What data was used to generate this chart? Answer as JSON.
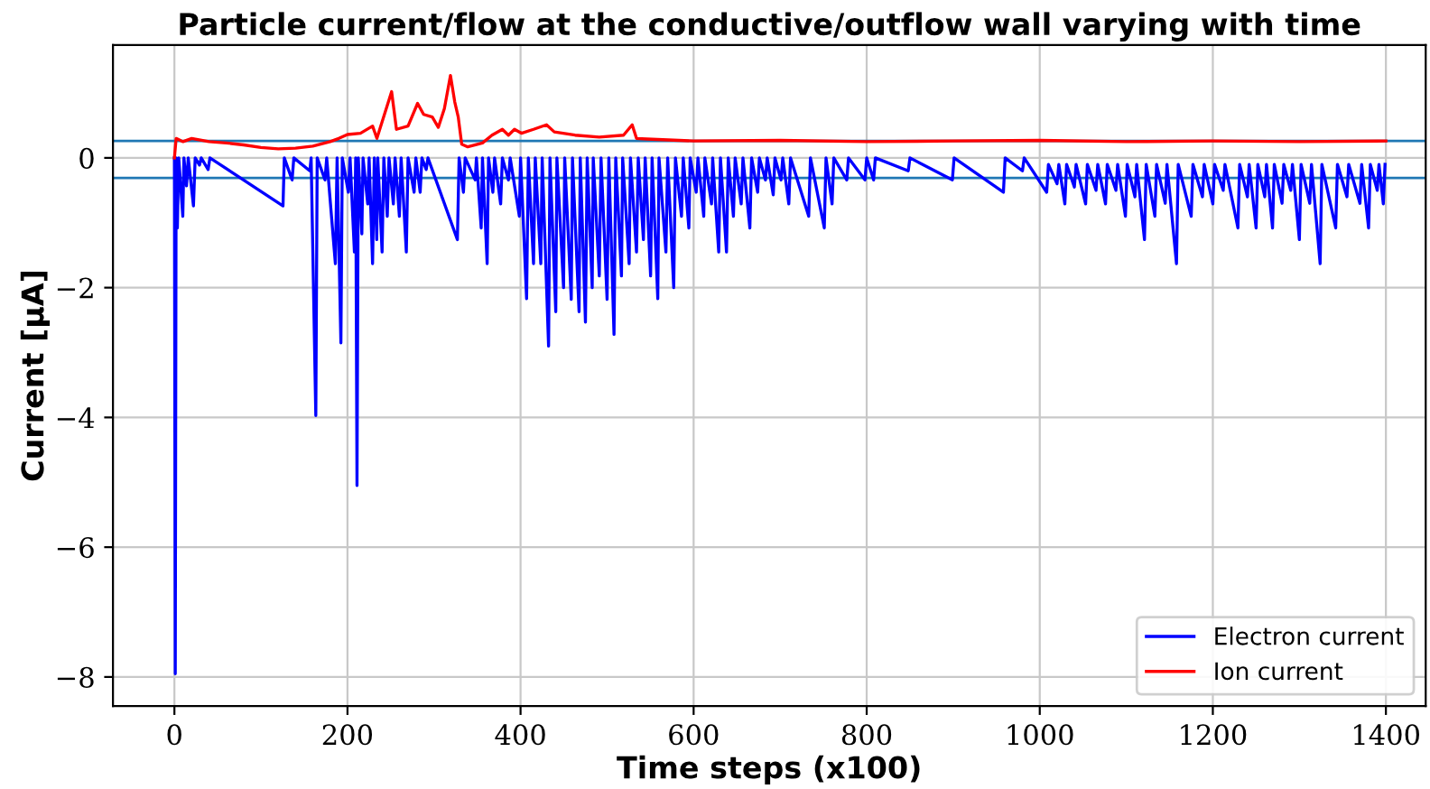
{
  "chart_data": {
    "type": "line",
    "title": "Particle current/flow at the conductive/outflow wall varying with time",
    "xlabel": "Time steps (x100)",
    "ylabel": "Current [μA]",
    "xlim": [
      -71,
      1446
    ],
    "ylim": [
      -8.45,
      1.74
    ],
    "xticks": [
      0,
      200,
      400,
      600,
      800,
      1000,
      1200,
      1400
    ],
    "yticks": [
      {
        "value": -8,
        "label": "−8"
      },
      {
        "value": -6,
        "label": "−6"
      },
      {
        "value": -4,
        "label": "−4"
      },
      {
        "value": -2,
        "label": "−2"
      },
      0
    ],
    "grid": true,
    "legend": "lower right",
    "ref_lines": [
      {
        "axis": "y",
        "value": 0.26,
        "color": "#1f77b4"
      },
      {
        "axis": "y",
        "value": -0.31,
        "color": "#1f77b4"
      }
    ],
    "series": [
      {
        "name": "Electron current",
        "color": "#0000ff",
        "x": [
          0,
          1,
          2,
          3.4,
          5,
          9.7,
          11,
          14,
          16,
          22,
          24,
          29,
          31,
          39,
          41,
          125.5,
          127,
          136,
          138,
          156.5,
          158,
          163.4,
          165,
          174,
          176,
          186,
          188,
          192.4,
          194,
          201,
          203,
          208,
          209.5,
          211,
          212.5,
          216.6,
          218,
          223.4,
          225,
          229,
          231,
          233.8,
          235,
          240,
          242,
          246,
          248,
          253,
          255,
          260,
          262,
          268,
          270,
          277,
          279,
          284,
          286,
          291,
          293,
          327,
          329,
          334,
          336,
          347.6,
          349,
          354.5,
          356,
          361.4,
          363,
          368,
          370,
          377,
          379,
          386,
          388,
          398.6,
          400,
          407,
          409,
          415,
          417,
          423.4,
          425,
          432.4,
          434,
          440.7,
          442,
          449.7,
          451,
          458.6,
          460,
          467.6,
          469,
          475,
          477,
          482.8,
          484,
          491,
          493,
          500,
          502,
          508,
          510,
          516.6,
          518,
          525.5,
          527,
          534,
          536,
          542,
          544,
          550.3,
          552,
          558.6,
          560,
          568,
          570,
          577,
          579,
          586,
          588,
          594.5,
          596,
          603,
          605,
          611.7,
          613,
          620.7,
          622,
          629,
          631,
          638,
          640,
          646,
          648,
          655,
          657,
          665,
          667,
          674,
          676,
          683,
          685,
          692,
          694,
          701,
          703,
          710,
          712,
          733,
          735,
          751,
          753,
          760,
          762,
          777,
          779,
          798,
          800,
          808,
          810,
          848,
          850,
          899,
          901,
          958,
          960,
          980,
          982,
          1008,
          1010,
          1020,
          1022,
          1029,
          1031,
          1040,
          1042,
          1053,
          1055,
          1065,
          1067,
          1076,
          1078,
          1088,
          1090,
          1099,
          1101,
          1110,
          1112,
          1121,
          1123,
          1133,
          1135,
          1145,
          1147,
          1158,
          1160,
          1175,
          1177,
          1188,
          1190,
          1200,
          1202,
          1212,
          1214,
          1229,
          1231,
          1240,
          1242,
          1250,
          1252,
          1260,
          1262,
          1269,
          1271,
          1280,
          1282,
          1290,
          1292,
          1300,
          1302,
          1312,
          1314,
          1324,
          1326,
          1342,
          1344,
          1355,
          1357,
          1370,
          1372,
          1380,
          1382,
          1390,
          1392,
          1397,
          1399
        ],
        "values": [
          0,
          -7.95,
          0,
          -1.08,
          0,
          -0.9,
          0,
          -0.43,
          0,
          -0.74,
          0,
          -0.11,
          0,
          -0.18,
          0,
          -0.74,
          0,
          -0.34,
          0,
          -0.2,
          0,
          -3.97,
          0,
          -0.34,
          0,
          -1.63,
          0,
          -2.85,
          0,
          -0.53,
          0,
          -1.45,
          0,
          -5.05,
          0,
          -1.17,
          0,
          -0.71,
          0,
          -1.63,
          0,
          -1.26,
          0,
          -1.45,
          0,
          -0.9,
          0,
          -0.71,
          0,
          -0.9,
          0,
          -1.45,
          0,
          -0.53,
          0,
          -0.53,
          0,
          -0.18,
          0,
          -1.26,
          0,
          -0.53,
          0,
          -0.34,
          0,
          -1.08,
          0,
          -1.63,
          0,
          -0.53,
          0,
          -0.71,
          0,
          -0.34,
          0,
          -0.9,
          0,
          -2.17,
          0,
          -1.63,
          0,
          -1.63,
          0,
          -2.9,
          0,
          -2.37,
          0,
          -2.0,
          0,
          -2.18,
          0,
          -2.37,
          0,
          -2.53,
          0,
          -2.0,
          0,
          -1.82,
          0,
          -2.18,
          0,
          -2.72,
          0,
          -1.82,
          0,
          -1.63,
          0,
          -1.45,
          0,
          -1.26,
          0,
          -1.82,
          0,
          -2.17,
          0,
          -1.45,
          0,
          -2.0,
          0,
          -0.9,
          0,
          -1.08,
          0,
          -0.53,
          0,
          -0.9,
          0,
          -0.71,
          0,
          -1.45,
          0,
          -1.45,
          0,
          -0.9,
          0,
          -0.71,
          0,
          -1.08,
          0,
          -0.53,
          0,
          -0.34,
          0,
          -0.57,
          0,
          -0.34,
          0,
          -0.71,
          0,
          -0.9,
          0,
          -1.08,
          0,
          -0.71,
          0,
          -0.34,
          0,
          -0.34,
          0,
          -0.34,
          0,
          -0.2,
          0,
          -0.34,
          0,
          -0.53,
          0,
          -0.2,
          0,
          -0.53,
          -0.1,
          -0.4,
          -0.1,
          -0.71,
          -0.1,
          -0.45,
          -0.1,
          -0.71,
          -0.1,
          -0.5,
          -0.1,
          -0.71,
          -0.1,
          -0.5,
          -0.1,
          -0.9,
          -0.1,
          -0.6,
          -0.1,
          -1.26,
          -0.1,
          -0.9,
          -0.1,
          -0.7,
          -0.1,
          -1.63,
          -0.1,
          -0.9,
          -0.1,
          -0.6,
          -0.1,
          -0.71,
          -0.1,
          -0.5,
          -0.1,
          -1.08,
          -0.1,
          -0.6,
          -0.1,
          -1.08,
          -0.1,
          -0.6,
          -0.1,
          -1.08,
          -0.1,
          -0.7,
          -0.1,
          -0.5,
          -0.1,
          -1.26,
          -0.1,
          -0.7,
          -0.1,
          -1.63,
          -0.1,
          -1.08,
          -0.1,
          -0.6,
          -0.1,
          -0.7,
          -0.1,
          -1.08,
          -0.1,
          -0.5,
          -0.1,
          -0.71,
          -0.1
        ]
      },
      {
        "name": "Ion current",
        "color": "#ff0000",
        "x": [
          0,
          2,
          10,
          20,
          40,
          60,
          80,
          100,
          120,
          140,
          160,
          180,
          190,
          200,
          215,
          229,
          234,
          251,
          256.6,
          270,
          281,
          288,
          298,
          305,
          312,
          319,
          324,
          328,
          332,
          339,
          356,
          367,
          379,
          386,
          393,
          401,
          415,
          430,
          439,
          463,
          491,
          519,
          529,
          534,
          546,
          600,
          700,
          800,
          900,
          1000,
          1100,
          1200,
          1300,
          1400
        ],
        "values": [
          0,
          0.3,
          0.25,
          0.3,
          0.25,
          0.23,
          0.2,
          0.16,
          0.14,
          0.15,
          0.18,
          0.25,
          0.3,
          0.36,
          0.38,
          0.49,
          0.3,
          1.02,
          0.44,
          0.49,
          0.84,
          0.67,
          0.63,
          0.47,
          0.76,
          1.27,
          0.86,
          0.63,
          0.21,
          0.17,
          0.23,
          0.35,
          0.44,
          0.35,
          0.44,
          0.38,
          0.44,
          0.51,
          0.4,
          0.35,
          0.32,
          0.35,
          0.51,
          0.3,
          0.29,
          0.26,
          0.27,
          0.25,
          0.26,
          0.27,
          0.25,
          0.26,
          0.25,
          0.26
        ]
      }
    ]
  }
}
